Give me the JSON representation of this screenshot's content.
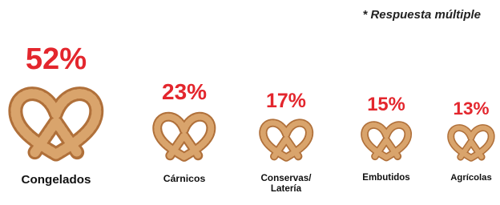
{
  "chart_data": {
    "type": "pictogram",
    "annotation": "* Respuesta múltiple",
    "categories": [
      "Congelados",
      "Cárnicos",
      "Conservas/\nLatería",
      "Embutidos",
      "Agrícolas"
    ],
    "values": [
      52,
      23,
      17,
      15,
      13
    ],
    "value_labels": [
      "52%",
      "23%",
      "17%",
      "15%",
      "13%"
    ],
    "color": "#e3262d"
  }
}
